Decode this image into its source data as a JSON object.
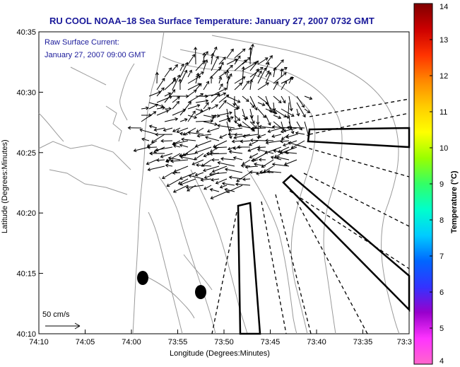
{
  "title": "RU COOL  NOAA–18  Sea Surface Temperature:  January 27, 2007 0732 GMT",
  "legend": {
    "line1": "Raw Surface Current:",
    "line2": "January 27, 2007 09:00 GMT"
  },
  "x_axis": {
    "label": "Longitude (Degrees:Minutes)",
    "ticks": [
      "74:10",
      "74:05",
      "74:00",
      "73:55",
      "73:50",
      "73:45",
      "73:40",
      "73:35",
      "73:3"
    ]
  },
  "y_axis": {
    "label": "Latitude (Degrees:Minutes)",
    "ticks": [
      "40:35",
      "40:30",
      "40:25",
      "40:20",
      "40:15",
      "40:10"
    ]
  },
  "scale_bar": {
    "label": "50 cm/s"
  },
  "colorbar": {
    "label": "Temperature (°C)",
    "ticks": [
      "14",
      "13",
      "12",
      "11",
      "10",
      "9",
      "8",
      "7",
      "6",
      "5",
      "4"
    ],
    "colors": [
      "#ff66cc",
      "#ff33ff",
      "#9900cc",
      "#3333ff",
      "#0066ff",
      "#00ccff",
      "#00ffcc",
      "#33ff66",
      "#99ff00",
      "#ffff00",
      "#ffcc00",
      "#ff8800",
      "#ff3300",
      "#cc0000",
      "#800000"
    ]
  },
  "colors": {
    "title": "#1a1a9a",
    "coast": "#999999"
  }
}
